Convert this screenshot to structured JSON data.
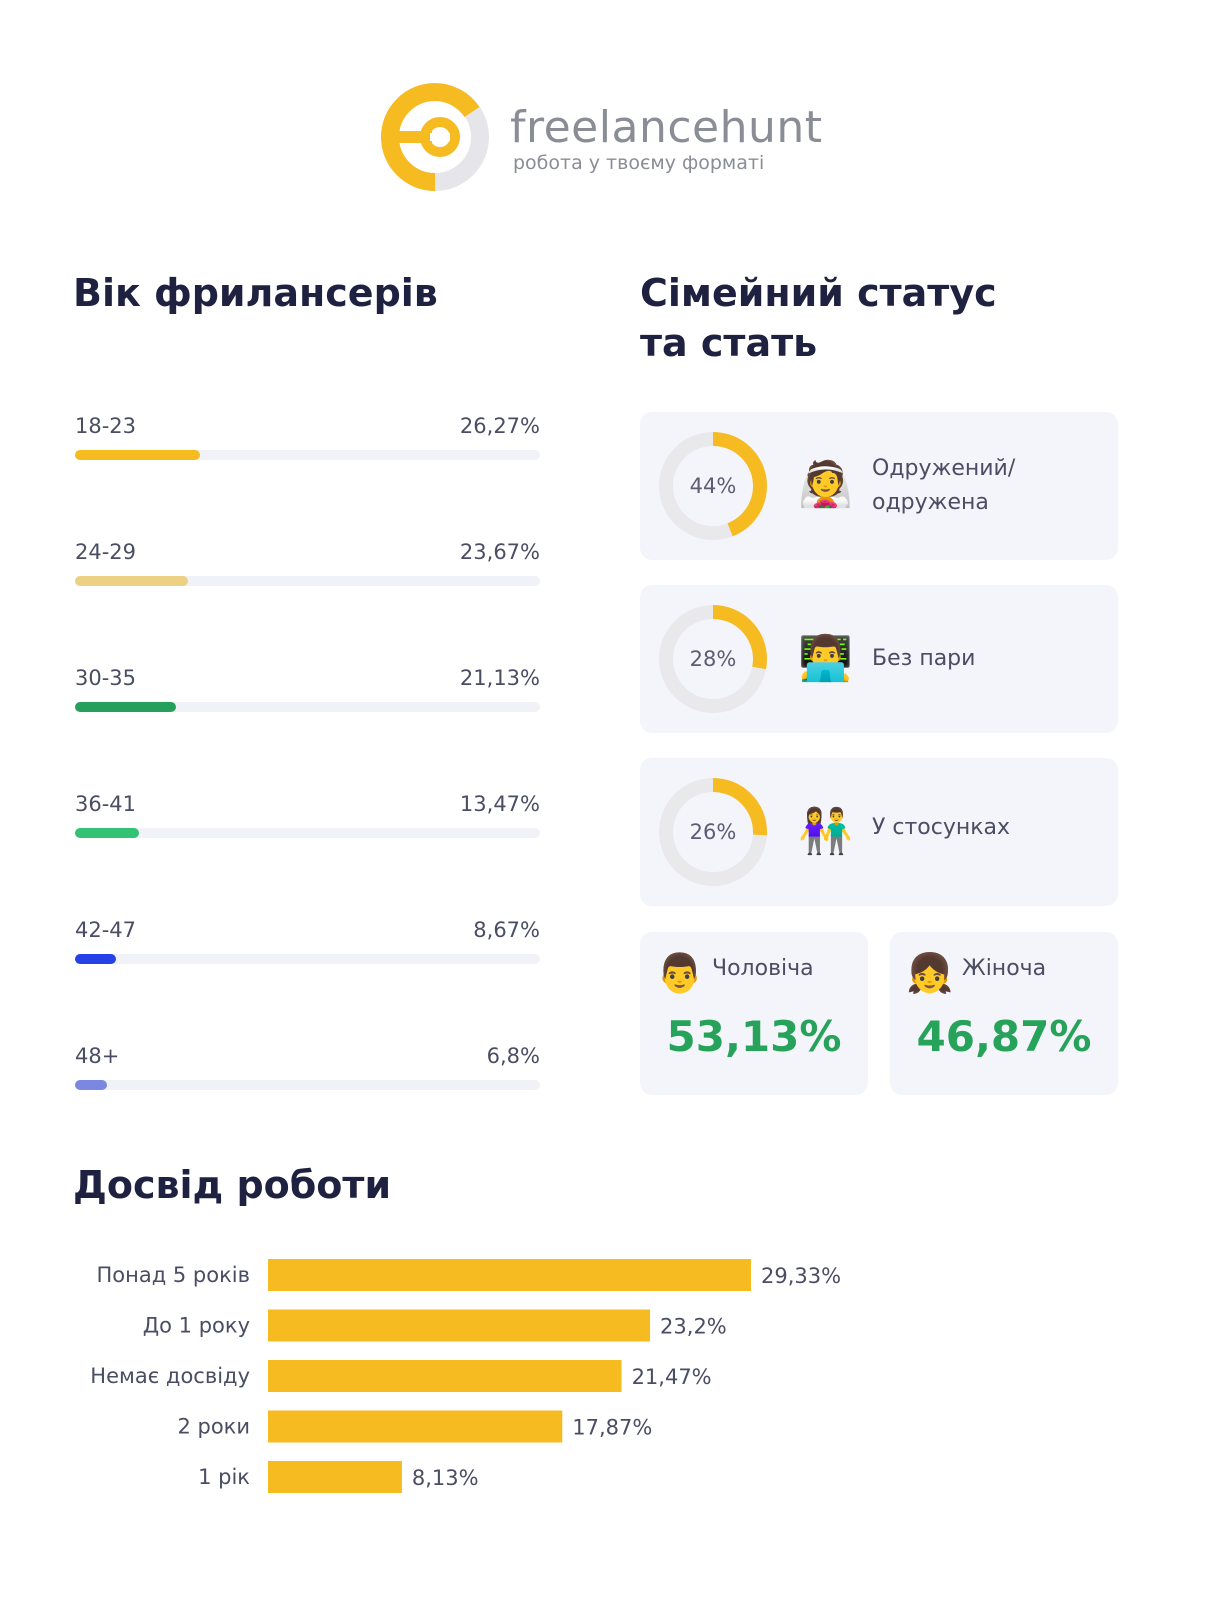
{
  "brand": {
    "name": "freelancehunt",
    "tagline": "робота у твоєму форматі",
    "colors": {
      "primary": "#f6bb21",
      "grey": "#e6e6ea"
    }
  },
  "age": {
    "title": "Вік фрилансерів",
    "rows": [
      {
        "label": "18-23",
        "value_text": "26,27%",
        "value": 26.27,
        "color": "#f6bb21"
      },
      {
        "label": "24-29",
        "value_text": "23,67%",
        "value": 23.67,
        "color": "#ecd083"
      },
      {
        "label": "30-35",
        "value_text": "21,13%",
        "value": 21.13,
        "color": "#24a05a"
      },
      {
        "label": "36-41",
        "value_text": "13,47%",
        "value": 13.47,
        "color": "#33c273"
      },
      {
        "label": "42-47",
        "value_text": "8,67%",
        "value": 8.67,
        "color": "#2641e6"
      },
      {
        "label": "48+",
        "value_text": "6,8%",
        "value": 6.8,
        "color": "#7b88e0"
      }
    ]
  },
  "status": {
    "title_line1": "Сімейний статус",
    "title_line2": "та стать",
    "items": [
      {
        "percent_text": "44%",
        "value": 44,
        "emoji": "👰",
        "label_line1": "Одружений/",
        "label_line2": "одружена"
      },
      {
        "percent_text": "28%",
        "value": 28,
        "emoji": "👨‍💻",
        "label_line1": "Без пари",
        "label_line2": ""
      },
      {
        "percent_text": "26%",
        "value": 26,
        "emoji": "👫",
        "label_line1": "У стосунках",
        "label_line2": ""
      }
    ],
    "gender": [
      {
        "emoji": "👨",
        "label": "Чоловіча",
        "value_text": "53,13%"
      },
      {
        "emoji": "👧",
        "label": "Жіноча",
        "value_text": "46,87%"
      }
    ]
  },
  "experience": {
    "title": "Досвід роботи"
  },
  "chart_data": {
    "type": "bar",
    "orientation": "horizontal",
    "title": "Досвід роботи",
    "categories": [
      "Понад 5 років",
      "До 1 року",
      "Немає досвіду",
      "2 роки",
      "1 рік"
    ],
    "values": [
      29.33,
      23.2,
      21.47,
      17.87,
      8.13
    ],
    "value_labels": [
      "29,33%",
      "23,2%",
      "21,47%",
      "17,87%",
      "8,13%"
    ],
    "bar_color": "#f6bb21",
    "xlim": [
      0,
      30
    ],
    "grid": false
  }
}
